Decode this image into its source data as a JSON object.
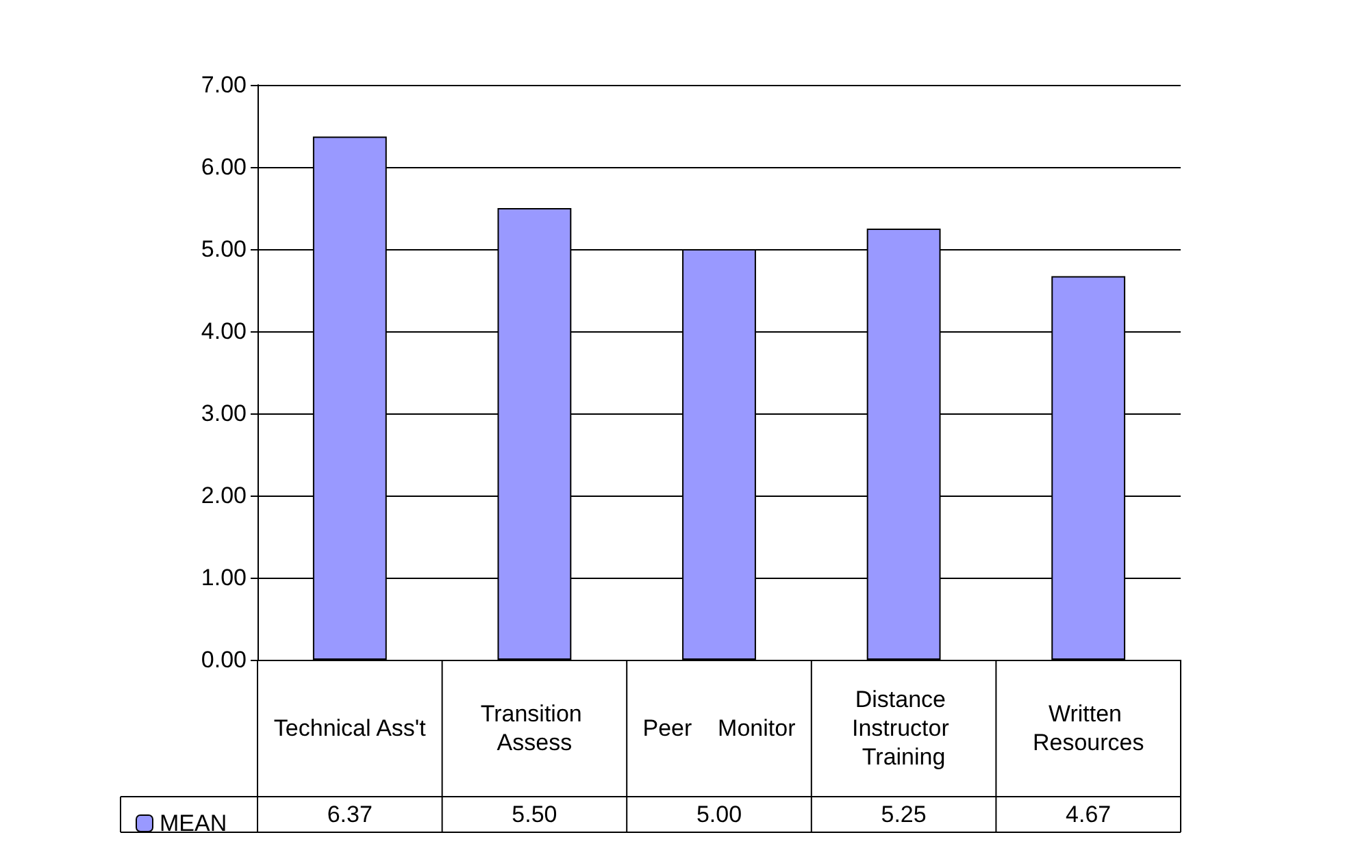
{
  "chart_data": {
    "type": "bar",
    "categories": [
      "Technical Ass't",
      "Transition Assess",
      "Peer    Monitor",
      "Distance Instructor Training",
      "Written Resources"
    ],
    "series": [
      {
        "name": "MEAN",
        "color": "#9999ff",
        "values": [
          6.37,
          5.5,
          5.0,
          5.25,
          4.67
        ],
        "value_labels": [
          "6.37",
          "5.50",
          "5.00",
          "5.25",
          "4.67"
        ]
      }
    ],
    "ylim": [
      0,
      7
    ],
    "yticks": [
      {
        "value": 0,
        "label": "0.00"
      },
      {
        "value": 1,
        "label": "1.00"
      },
      {
        "value": 2,
        "label": "2.00"
      },
      {
        "value": 3,
        "label": "3.00"
      },
      {
        "value": 4,
        "label": "4.00"
      },
      {
        "value": 5,
        "label": "5.00"
      },
      {
        "value": 6,
        "label": "6.00"
      },
      {
        "value": 7,
        "label": "7.00"
      }
    ],
    "grid": "y",
    "legend": "bottom left"
  }
}
